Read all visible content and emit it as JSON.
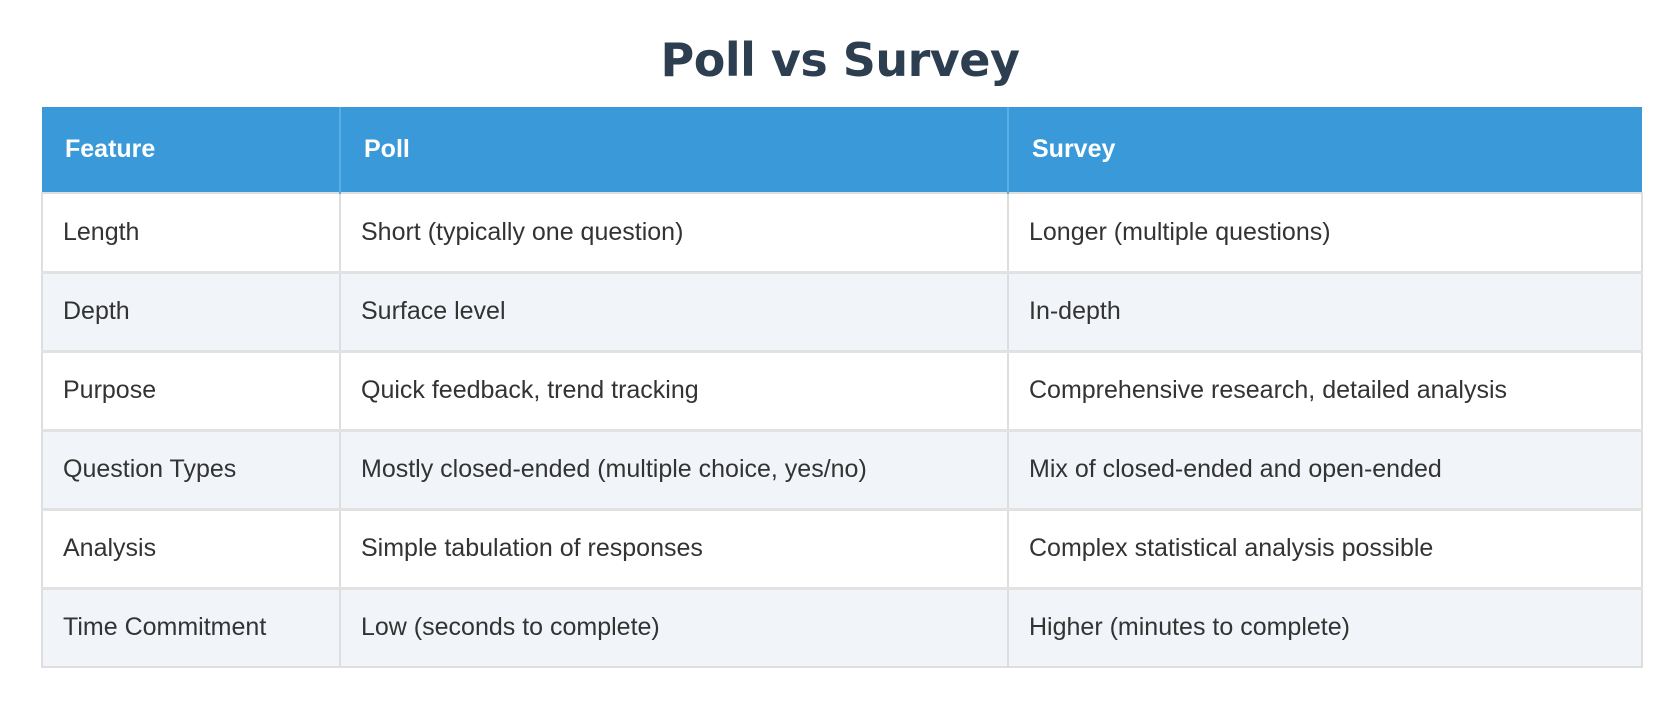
{
  "title": "Poll vs Survey",
  "table": {
    "headers": [
      "Feature",
      "Poll",
      "Survey"
    ],
    "rows": [
      [
        "Length",
        "Short (typically one question)",
        "Longer (multiple questions)"
      ],
      [
        "Depth",
        "Surface level",
        "In-depth"
      ],
      [
        "Purpose",
        "Quick feedback, trend tracking",
        "Comprehensive research, detailed analysis"
      ],
      [
        "Question Types",
        "Mostly closed-ended (multiple choice, yes/no)",
        "Mix of closed-ended and open-ended"
      ],
      [
        "Analysis",
        "Simple tabulation of responses",
        "Complex statistical analysis possible"
      ],
      [
        "Time Commitment",
        "Low (seconds to complete)",
        "Higher (minutes to complete)"
      ]
    ]
  },
  "colors": {
    "title": "#2c3e50",
    "header_bg": "#3a9ad9",
    "header_text": "#ffffff",
    "row_alt_bg": "#f1f4f8",
    "body_text": "#333333"
  }
}
